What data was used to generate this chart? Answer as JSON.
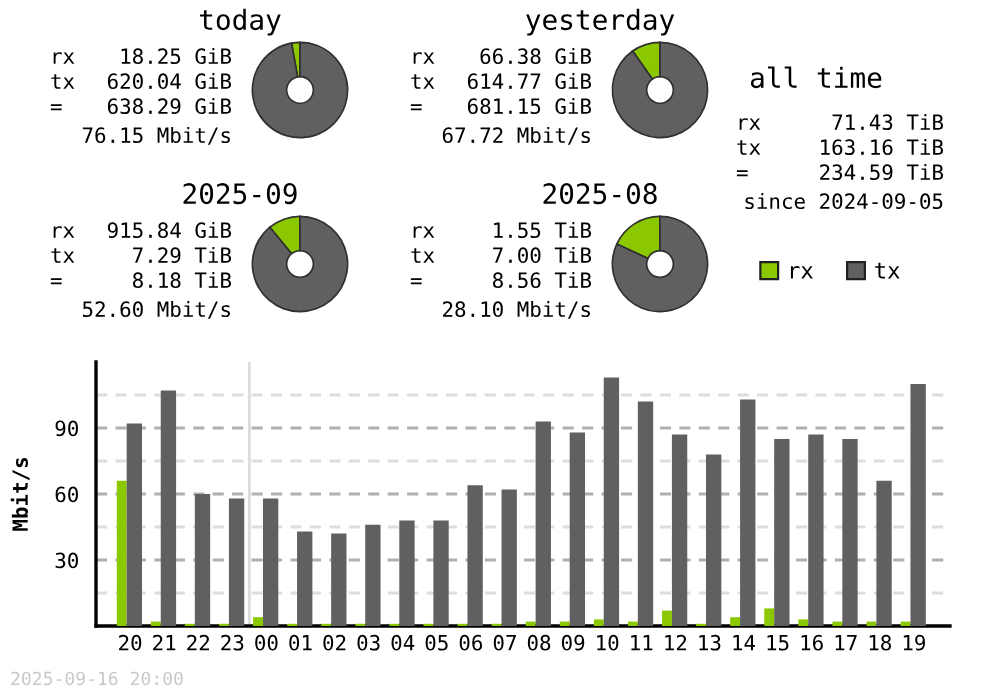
{
  "chart_data": [
    {
      "type": "donut",
      "title": "today",
      "categories": [
        null,
        null
      ],
      "values": [
        2.86,
        97.14
      ],
      "colors": [
        "#8cc800",
        "#606060"
      ],
      "annotations": [
        "rx",
        "18.25 GiB",
        "tx",
        "620.04 GiB",
        "=",
        "638.29 GiB",
        "76.15 Mbit/s"
      ]
    },
    {
      "type": "donut",
      "title": "yesterday",
      "categories": [
        null,
        null
      ],
      "values": [
        9.75,
        90.25
      ],
      "colors": [
        "#8cc800",
        "#606060"
      ],
      "annotations": [
        "rx",
        "66.38 GiB",
        "tx",
        "614.77 GiB",
        "=",
        "681.15 GiB",
        "67.72 Mbit/s"
      ]
    },
    {
      "type": "donut",
      "title": "2025-09",
      "categories": [
        null,
        null
      ],
      "values": [
        10.93,
        89.07
      ],
      "colors": [
        "#8cc800",
        "#606060"
      ],
      "annotations": [
        "rx",
        "915.84 GiB",
        "tx",
        "7.29 TiB",
        "=",
        "8.18 TiB",
        "52.60 Mbit/s"
      ]
    },
    {
      "type": "donut",
      "title": "2025-08",
      "categories": [
        null,
        null
      ],
      "values": [
        18.1,
        81.9
      ],
      "colors": [
        "#8cc800",
        "#606060"
      ],
      "annotations": [
        "rx",
        "1.55 TiB",
        "tx",
        "7.00 TiB",
        "=",
        "8.56 TiB",
        "28.10 Mbit/s"
      ]
    },
    {
      "type": "other",
      "title": "all time",
      "annotations": [
        "rx",
        "71.43 TiB",
        "tx",
        "163.16 TiB",
        "=",
        "234.59 TiB",
        "since 2024-09-05"
      ]
    },
    {
      "type": "bar",
      "ylabel": "Mbit/s",
      "categories": [
        "20",
        "21",
        "22",
        "23",
        "00",
        "01",
        "02",
        "03",
        "04",
        "05",
        "06",
        "07",
        "08",
        "09",
        "10",
        "11",
        "12",
        "13",
        "14",
        "15",
        "16",
        "17",
        "18",
        "19"
      ],
      "series": [
        {
          "name": "rx",
          "color": "#8cc800",
          "values": [
            66,
            2,
            1,
            1,
            4,
            1,
            1,
            1,
            1,
            1,
            1,
            1,
            2,
            2,
            3,
            2,
            7,
            1,
            4,
            8,
            3,
            2,
            2,
            2
          ]
        },
        {
          "name": "tx",
          "color": "#606060",
          "values": [
            92,
            107,
            60,
            58,
            58,
            43,
            42,
            46,
            48,
            48,
            64,
            62,
            93,
            88,
            113,
            102,
            87,
            78,
            103,
            85,
            87,
            85,
            66,
            110
          ]
        }
      ],
      "ylim": [
        0,
        120
      ],
      "yticks": [
        {
          "value": 15,
          "label": null
        },
        30,
        {
          "value": 45,
          "label": null
        },
        60,
        {
          "value": 75,
          "label": null
        },
        90,
        {
          "value": 105,
          "label": null
        }
      ],
      "grid": "y",
      "legend": "top right",
      "ref_lines": [
        {
          "axis": "x",
          "value": "00",
          "color": "#dcdcdc"
        }
      ],
      "annotations": [
        "2025-09-16 20:00"
      ]
    }
  ]
}
